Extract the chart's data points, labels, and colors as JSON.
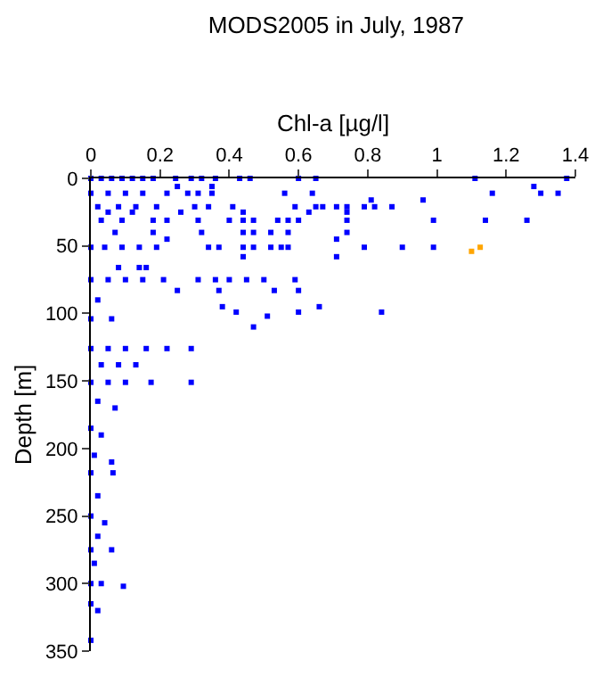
{
  "chart_data": {
    "type": "scatter",
    "title": "MODS2005 in July, 1987",
    "xlabel": "Chl-a [µg/l]",
    "ylabel": "Depth [m]",
    "xlim": [
      0,
      1.4
    ],
    "xticks": [
      0,
      0.2,
      0.4,
      0.6,
      0.8,
      1,
      1.2,
      1.4
    ],
    "ylim": [
      350,
      0
    ],
    "yticks": [
      0,
      50,
      100,
      150,
      200,
      250,
      300,
      350
    ],
    "marker": "square",
    "series": [
      {
        "color": "#0000ff",
        "x": [
          0.0,
          0.03,
          0.06,
          0.09,
          0.12,
          0.15,
          0.18,
          0.245,
          0.29,
          0.32,
          0.36,
          0.43,
          0.46,
          0.6,
          0.65,
          1.11,
          1.375,
          0.25,
          0.35,
          1.28,
          0.0,
          0.05,
          0.1,
          0.15,
          0.22,
          0.28,
          0.31,
          0.35,
          0.56,
          0.64,
          1.16,
          1.3,
          1.35,
          0.81,
          0.96,
          0.02,
          0.08,
          0.13,
          0.19,
          0.3,
          0.34,
          0.41,
          0.59,
          0.65,
          0.67,
          0.71,
          0.74,
          0.79,
          0.82,
          0.87,
          0.05,
          0.12,
          0.26,
          0.44,
          0.63,
          0.74,
          0.03,
          0.09,
          0.18,
          0.22,
          0.31,
          0.4,
          0.44,
          0.47,
          0.54,
          0.57,
          0.6,
          0.74,
          0.99,
          1.14,
          1.26,
          0.07,
          0.18,
          0.32,
          0.44,
          0.47,
          0.52,
          0.57,
          0.74,
          0.22,
          0.71,
          0.0,
          0.04,
          0.09,
          0.14,
          0.19,
          0.34,
          0.37,
          0.44,
          0.47,
          0.52,
          0.55,
          0.57,
          0.79,
          0.9,
          0.99,
          0.44,
          0.71,
          0.08,
          0.14,
          0.16,
          0.0,
          0.05,
          0.1,
          0.15,
          0.21,
          0.31,
          0.36,
          0.4,
          0.45,
          0.5,
          0.59,
          0.25,
          0.37,
          0.53,
          0.6,
          0.02,
          0.38,
          0.66,
          0.42,
          0.6,
          0.84,
          0.51,
          0.0,
          0.06,
          0.47,
          0.0,
          0.05,
          0.1,
          0.16,
          0.22,
          0.29,
          0.03,
          0.08,
          0.13,
          0.0,
          0.05,
          0.1,
          0.174,
          0.29,
          0.02,
          0.07,
          0.0,
          0.03,
          0.01,
          0.06,
          0.0,
          0.064,
          0.02,
          0.0,
          0.04,
          0.02,
          0.0,
          0.06,
          0.01,
          0.0,
          0.03,
          0.094,
          0.0,
          0.02,
          0.0
        ],
        "values": [
          0,
          0,
          0,
          0,
          0,
          0,
          0,
          0,
          0,
          0,
          0,
          0,
          0,
          0,
          0,
          0,
          0,
          6,
          6,
          6,
          11,
          11,
          11,
          11,
          11,
          11,
          11,
          11,
          11,
          11,
          11,
          11,
          11,
          16,
          16,
          21,
          21,
          21,
          21,
          21,
          21,
          21,
          21,
          21,
          21,
          21,
          21,
          21,
          21,
          21,
          25,
          25,
          25,
          25,
          25,
          25,
          31,
          31,
          31,
          31,
          31,
          31,
          31,
          31,
          31,
          31,
          31,
          31,
          31,
          31,
          31,
          40,
          40,
          40,
          40,
          40,
          40,
          40,
          40,
          45,
          45,
          51,
          51,
          51,
          51,
          51,
          51,
          51,
          51,
          51,
          51,
          51,
          51,
          51,
          51,
          51,
          58,
          58,
          66,
          66,
          66,
          75,
          75,
          75,
          75,
          75,
          75,
          75,
          75,
          75,
          75,
          75,
          83,
          83,
          83,
          83,
          90,
          95,
          95,
          99,
          99,
          99,
          102,
          104,
          104,
          110,
          126,
          126,
          126,
          126,
          126,
          126,
          138,
          138,
          138,
          151,
          151,
          151,
          151,
          151,
          165,
          170,
          185,
          190,
          205,
          210,
          218,
          218,
          235,
          250,
          255,
          265,
          275,
          275,
          285,
          300,
          300,
          302,
          315,
          320,
          342
        ]
      },
      {
        "color": "#ffa500",
        "x": [
          1.1,
          1.125
        ],
        "values": [
          54,
          51
        ]
      }
    ]
  }
}
